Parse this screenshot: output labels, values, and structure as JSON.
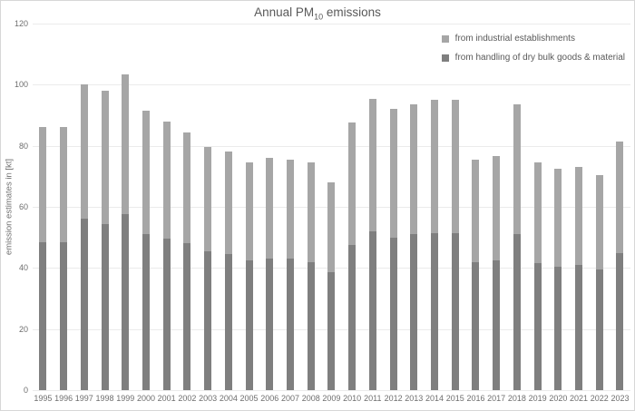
{
  "title": {
    "prefix": "Annual PM",
    "subscript": "10",
    "suffix": " emissions"
  },
  "legend": {
    "entries": [
      {
        "label": "from industrial establishments",
        "color": "#a6a6a6"
      },
      {
        "label": "from handling of dry bulk goods & material",
        "color": "#7f7f7f"
      }
    ]
  },
  "chart_data": {
    "type": "bar",
    "stacked": true,
    "title": "Annual PM10 emissions",
    "xlabel": "",
    "ylabel": "emission estimates in [kt]",
    "ylim": [
      0,
      120
    ],
    "yticks": [
      0,
      20,
      40,
      60,
      80,
      100,
      120
    ],
    "grid": true,
    "legend_position": "top-right",
    "categories": [
      "1995",
      "1996",
      "1997",
      "1998",
      "1999",
      "2000",
      "2001",
      "2002",
      "2003",
      "2004",
      "2005",
      "2006",
      "2007",
      "2008",
      "2009",
      "2010",
      "2011",
      "2012",
      "2013",
      "2014",
      "2015",
      "2016",
      "2017",
      "2018",
      "2019",
      "2020",
      "2021",
      "2022",
      "2023"
    ],
    "series": [
      {
        "name": "from handling of dry bulk goods & material",
        "color": "#7f7f7f",
        "values": [
          48.5,
          48.5,
          56,
          54.5,
          57.5,
          51,
          49.5,
          48,
          45.5,
          44.5,
          42.5,
          43,
          43,
          42,
          38.5,
          47.5,
          52,
          50,
          51,
          51.5,
          51.5,
          42,
          42.5,
          51,
          41.5,
          40.5,
          41,
          39.5,
          45
        ]
      },
      {
        "name": "from industrial establishments",
        "color": "#a6a6a6",
        "values": [
          37.5,
          37.5,
          44,
          43.5,
          46,
          40.5,
          38.5,
          36.5,
          34,
          33.5,
          32,
          33,
          32.5,
          32.5,
          29.5,
          40,
          43.5,
          42,
          42.5,
          43.5,
          43.5,
          33.5,
          34,
          42.5,
          33,
          32,
          32,
          31,
          36.5
        ]
      }
    ],
    "totals": [
      86,
      86,
      100,
      98,
      103.5,
      91.5,
      88,
      84.5,
      79.5,
      78,
      74.5,
      76,
      75.5,
      74.5,
      68,
      87.5,
      95.5,
      92,
      93.5,
      95,
      95,
      75.5,
      76.5,
      93.5,
      74.5,
      72.5,
      73,
      70.5,
      81.5
    ]
  }
}
